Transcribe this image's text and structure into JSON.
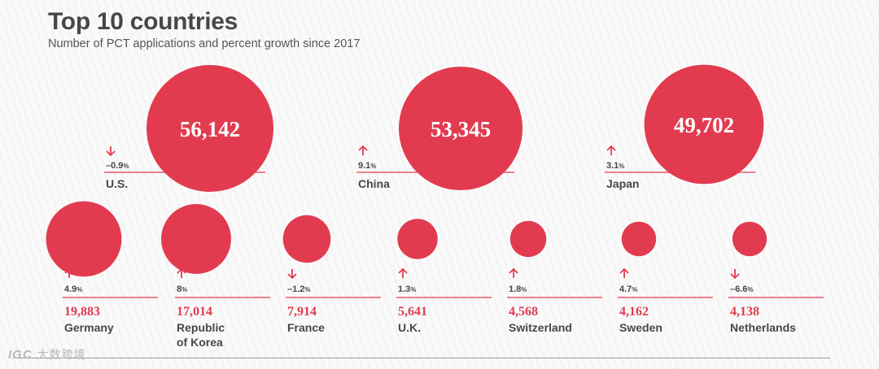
{
  "title": "Top 10 countries",
  "subtitle": "Number of PCT applications and percent growth since 2017",
  "watermark": {
    "logo": "IGC",
    "text": "大数跨境"
  },
  "colors": {
    "accent": "#e23b50",
    "text": "#474747",
    "rule": "#e23b50"
  },
  "icons": {
    "up": "arrow-up-icon",
    "down": "arrow-down-icon"
  },
  "chart_data": {
    "type": "bubble",
    "title": "Top 10 countries",
    "subtitle": "Number of PCT applications and percent growth since 2017",
    "categories": [
      "U.S.",
      "China",
      "Japan",
      "Germany",
      "Republic of Korea",
      "France",
      "U.K.",
      "Switzerland",
      "Sweden",
      "Netherlands"
    ],
    "series": [
      {
        "values": [
          56142,
          53345,
          49702,
          19883,
          17014,
          7914,
          5641,
          4568,
          4162,
          4138
        ]
      },
      {
        "values": [
          -0.9,
          9.1,
          3.1,
          4.9,
          8,
          -1.2,
          1.3,
          1.8,
          4.7,
          -6.6
        ]
      }
    ],
    "items": [
      {
        "country": "U.S.",
        "applications": 56142,
        "applications_label": "56,142",
        "growth": -0.9,
        "growth_value": "–0.9",
        "growth_unit": "%",
        "direction": "down"
      },
      {
        "country": "China",
        "applications": 53345,
        "applications_label": "53,345",
        "growth": 9.1,
        "growth_value": "9.1",
        "growth_unit": "%",
        "direction": "up"
      },
      {
        "country": "Japan",
        "applications": 49702,
        "applications_label": "49,702",
        "growth": 3.1,
        "growth_value": "3.1",
        "growth_unit": "%",
        "direction": "up"
      },
      {
        "country": "Germany",
        "applications": 19883,
        "applications_label": "19,883",
        "growth": 4.9,
        "growth_value": "4.9",
        "growth_unit": "%",
        "direction": "up"
      },
      {
        "country": "Republic of Korea",
        "country_lines": [
          "Republic",
          "of Korea"
        ],
        "applications": 17014,
        "applications_label": "17,014",
        "growth": 8,
        "growth_value": "8",
        "growth_unit": "%",
        "direction": "up"
      },
      {
        "country": "France",
        "applications": 7914,
        "applications_label": "7,914",
        "growth": -1.2,
        "growth_value": "–1.2",
        "growth_unit": "%",
        "direction": "down"
      },
      {
        "country": "U.K.",
        "applications": 5641,
        "applications_label": "5,641",
        "growth": 1.3,
        "growth_value": "1.3",
        "growth_unit": "%",
        "direction": "up"
      },
      {
        "country": "Switzerland",
        "applications": 4568,
        "applications_label": "4,568",
        "growth": 1.8,
        "growth_value": "1.8",
        "growth_unit": "%",
        "direction": "up"
      },
      {
        "country": "Sweden",
        "applications": 4162,
        "applications_label": "4,162",
        "growth": 4.7,
        "growth_value": "4.7",
        "growth_unit": "%",
        "direction": "up"
      },
      {
        "country": "Netherlands",
        "applications": 4138,
        "applications_label": "4,138",
        "growth": -6.6,
        "growth_value": "–6.6",
        "growth_unit": "%",
        "direction": "down"
      }
    ]
  }
}
